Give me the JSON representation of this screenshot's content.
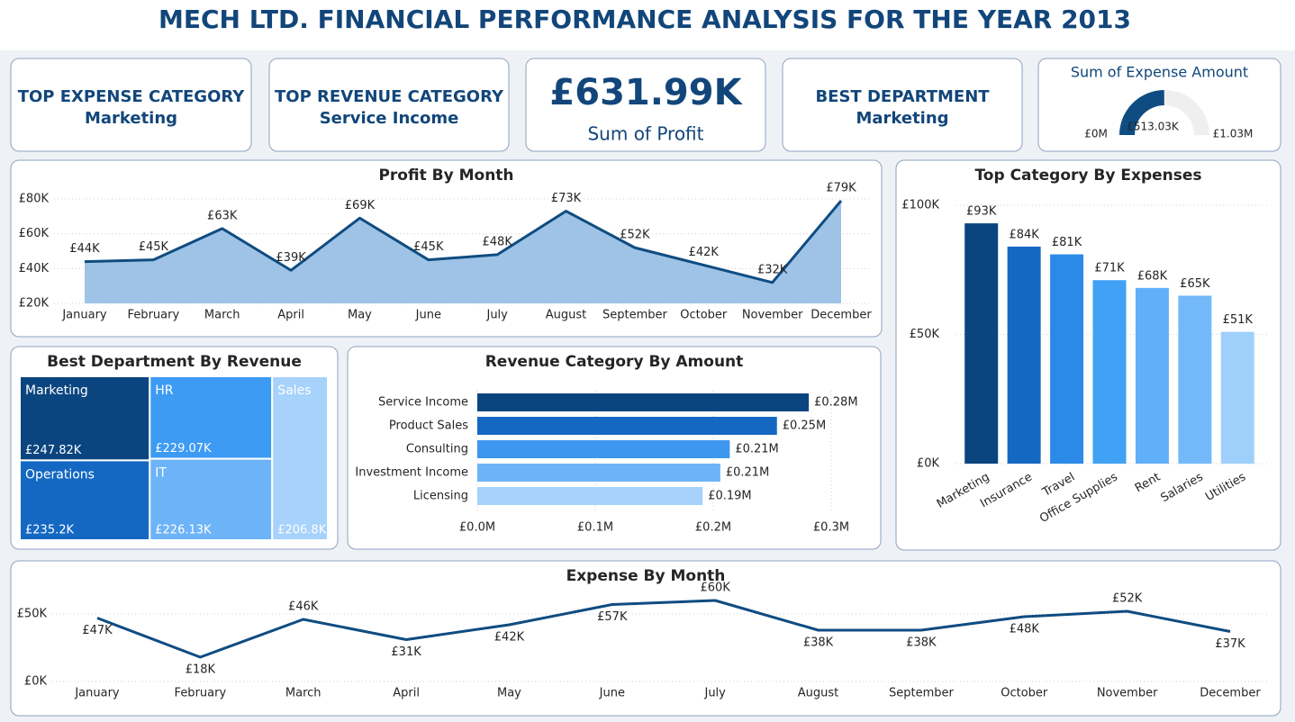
{
  "title": "MECH LTD. FINANCIAL PERFORMANCE ANALYSIS FOR THE YEAR 2013",
  "cards": [
    {
      "label": "TOP EXPENSE CATEGORY",
      "value": "Marketing"
    },
    {
      "label": "TOP REVENUE CATEGORY",
      "value": "Service Income"
    },
    {
      "value": "£631.99K",
      "label": "Sum of Profit"
    },
    {
      "label": "BEST DEPARTMENT",
      "value": "Marketing"
    }
  ],
  "chart_data": [
    {
      "type": "gauge",
      "title": "Sum of Expense Amount",
      "values": [
        513030
      ],
      "value_labels": [
        "£513.03K"
      ],
      "ylim": [
        0,
        1030000
      ],
      "yticks": [
        {
          "value": 0,
          "label": "£0M"
        },
        {
          "value": 1030000,
          "label": "£1.03M"
        }
      ],
      "color": "#0f4c81",
      "track_color": "#efefef"
    },
    {
      "type": "area",
      "title": "Profit By Month",
      "categories": [
        "January",
        "February",
        "March",
        "April",
        "May",
        "June",
        "July",
        "August",
        "September",
        "October",
        "November",
        "December"
      ],
      "values": [
        44000,
        45000,
        63000,
        39000,
        69000,
        45000,
        48000,
        73000,
        52000,
        42000,
        32000,
        79000
      ],
      "value_labels": [
        "£44K",
        "£45K",
        "£63K",
        "£39K",
        "£69K",
        "£45K",
        "£48K",
        "£73K",
        "£52K",
        "£42K",
        "£32K",
        "£79K"
      ],
      "ylim": [
        20000,
        80000
      ],
      "yticks": [
        {
          "value": 20000,
          "label": "£20K"
        },
        {
          "value": 40000,
          "label": "£40K"
        },
        {
          "value": 60000,
          "label": "£60K"
        },
        {
          "value": 80000,
          "label": "£80K"
        }
      ],
      "grid": true,
      "color": "#0f4c81",
      "fill_color": "#9fc3e6"
    },
    {
      "type": "bar",
      "title": "Top Category By Expenses",
      "categories": [
        "Marketing",
        "Insurance",
        "Travel",
        "Office Supplies",
        "Rent",
        "Salaries",
        "Utilities"
      ],
      "values": [
        93000,
        84000,
        81000,
        71000,
        68000,
        65000,
        51000
      ],
      "value_labels": [
        "£93K",
        "£84K",
        "£81K",
        "£71K",
        "£68K",
        "£65K",
        "£51K"
      ],
      "colors": [
        "#0b4580",
        "#1468c2",
        "#2b8ae8",
        "#41a1f5",
        "#5fb0f8",
        "#73b9f9",
        "#9fd0fb"
      ],
      "ylim": [
        0,
        100000
      ],
      "yticks": [
        {
          "value": 0,
          "label": "£0K"
        },
        {
          "value": 50000,
          "label": "£50K"
        },
        {
          "value": 100000,
          "label": "£100K"
        }
      ],
      "grid": true
    },
    {
      "type": "treemap",
      "title": "Best Department By Revenue",
      "categories": [
        "Marketing",
        "Operations",
        "HR",
        "IT",
        "Sales"
      ],
      "values": [
        247820,
        235200,
        229070,
        226130,
        206800
      ],
      "value_labels": [
        "£247.82K",
        "£235.2K",
        "£229.07K",
        "£226.13K",
        "£206.8K"
      ],
      "colors": [
        "#0b4580",
        "#1468c2",
        "#3d9bf3",
        "#6cb4f7",
        "#a6d2fb"
      ]
    },
    {
      "type": "hbar",
      "title": "Revenue Category By Amount",
      "categories": [
        "Service Income",
        "Product Sales",
        "Consulting",
        "Investment Income",
        "Licensing"
      ],
      "values": [
        281000,
        254000,
        214000,
        206000,
        191000
      ],
      "value_labels": [
        "£0.28M",
        "£0.25M",
        "£0.21M",
        "£0.21M",
        "£0.19M"
      ],
      "colors": [
        "#0b4580",
        "#1468c2",
        "#3d97ef",
        "#6cb4f7",
        "#a6d2fb"
      ],
      "xlim": [
        0,
        300000
      ],
      "xticks": [
        {
          "value": 0,
          "label": "£0.0M"
        },
        {
          "value": 100000,
          "label": "£0.1M"
        },
        {
          "value": 200000,
          "label": "£0.2M"
        },
        {
          "value": 300000,
          "label": "£0.3M"
        }
      ],
      "grid": true
    },
    {
      "type": "line",
      "title": "Expense By Month",
      "categories": [
        "January",
        "February",
        "March",
        "April",
        "May",
        "June",
        "July",
        "August",
        "September",
        "October",
        "November",
        "December"
      ],
      "values": [
        47000,
        18000,
        46000,
        31000,
        42000,
        57000,
        60000,
        38000,
        38000,
        48000,
        52000,
        37000
      ],
      "value_labels": [
        "£47K",
        "£18K",
        "£46K",
        "£31K",
        "£42K",
        "£57K",
        "£60K",
        "£38K",
        "£38K",
        "£48K",
        "£52K",
        "£37K"
      ],
      "ylim": [
        0,
        65000
      ],
      "yticks": [
        {
          "value": 0,
          "label": "£0K"
        },
        {
          "value": 50000,
          "label": "£50K"
        }
      ],
      "grid": true,
      "color": "#0f4c81"
    }
  ]
}
